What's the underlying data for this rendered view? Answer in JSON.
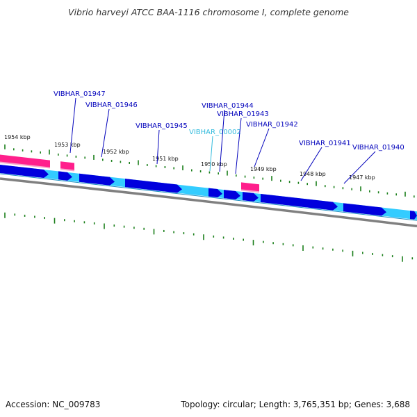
{
  "title": "Vibrio harveyi ATCC BAA-1116 chromosome I, complete genome",
  "accession": "Accession: NC_009783",
  "topology": "Topology: circular; Length: 3,765,351 bp; Genes: 3,688",
  "colors": {
    "forward_cds": "#0000dd",
    "forward_lane": "#33ccff",
    "reverse_feature": "#ff1f8c",
    "backbone": "#808080",
    "tick": "#1a7f1a",
    "label_dark": "#0000bb",
    "label_light": "#33bbdd"
  },
  "kbp_labels": [
    "1954 kbp",
    "1953 kbp",
    "1952 kbp",
    "1951 kbp",
    "1950 kbp",
    "1949 kbp",
    "1948 kbp",
    "1947 kbp"
  ],
  "gene_labels": [
    {
      "text": "VIBHAR_01947",
      "style": "dark"
    },
    {
      "text": "VIBHAR_01946",
      "style": "dark"
    },
    {
      "text": "VIBHAR_01945",
      "style": "dark"
    },
    {
      "text": "VIBHAR_00002",
      "style": "light"
    },
    {
      "text": "VIBHAR_01944",
      "style": "dark"
    },
    {
      "text": "VIBHAR_01943",
      "style": "dark"
    },
    {
      "text": "VIBHAR_01942",
      "style": "dark"
    },
    {
      "text": "VIBHAR_01941",
      "style": "dark"
    },
    {
      "text": "VIBHAR_01940",
      "style": "dark"
    }
  ]
}
